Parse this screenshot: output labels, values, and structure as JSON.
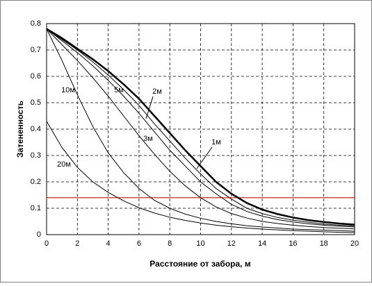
{
  "chart_data": {
    "type": "line",
    "x_label": "Расстояние от забора, м",
    "y_label": "Затененность",
    "x": [
      0,
      1,
      2,
      3,
      4,
      5,
      6,
      7,
      8,
      9,
      10,
      11,
      12,
      13,
      14,
      15,
      16,
      17,
      18,
      19,
      20
    ],
    "xlim": [
      0,
      20
    ],
    "xticks": [
      0,
      2,
      4,
      6,
      8,
      10,
      12,
      14,
      16,
      18,
      20
    ],
    "ylim": [
      0,
      0.8
    ],
    "yticks": [
      0,
      0.1,
      0.2,
      0.3,
      0.4,
      0.5,
      0.6,
      0.7,
      0.8
    ],
    "grid": true,
    "series": [
      {
        "name": "1м",
        "color": "#000000",
        "line_width": 2.5,
        "values": [
          0.78,
          0.745,
          0.705,
          0.665,
          0.62,
          0.57,
          0.515,
          0.45,
          0.385,
          0.32,
          0.26,
          0.2,
          0.155,
          0.12,
          0.095,
          0.078,
          0.065,
          0.055,
          0.048,
          0.042,
          0.038
        ]
      },
      {
        "name": "2м",
        "color": "#000000",
        "line_width": 1,
        "values": [
          0.78,
          0.74,
          0.7,
          0.655,
          0.605,
          0.55,
          0.49,
          0.42,
          0.355,
          0.29,
          0.23,
          0.175,
          0.135,
          0.1,
          0.08,
          0.065,
          0.055,
          0.047,
          0.04,
          0.036,
          0.033
        ]
      },
      {
        "name": "3м",
        "color": "#000000",
        "line_width": 1,
        "values": [
          0.78,
          0.735,
          0.69,
          0.64,
          0.585,
          0.525,
          0.46,
          0.39,
          0.32,
          0.26,
          0.2,
          0.155,
          0.115,
          0.088,
          0.07,
          0.057,
          0.048,
          0.041,
          0.036,
          0.032,
          0.029
        ]
      },
      {
        "name": "5м",
        "color": "#000000",
        "line_width": 1,
        "values": [
          0.78,
          0.72,
          0.66,
          0.595,
          0.525,
          0.45,
          0.375,
          0.305,
          0.24,
          0.185,
          0.14,
          0.105,
          0.08,
          0.063,
          0.05,
          0.042,
          0.036,
          0.031,
          0.027,
          0.024,
          0.022
        ]
      },
      {
        "name": "10м",
        "color": "#000000",
        "line_width": 1,
        "values": [
          0.78,
          0.66,
          0.53,
          0.41,
          0.31,
          0.235,
          0.175,
          0.13,
          0.1,
          0.078,
          0.062,
          0.05,
          0.041,
          0.034,
          0.029,
          0.025,
          0.021,
          0.019,
          0.017,
          0.015,
          0.013
        ]
      },
      {
        "name": "20м",
        "color": "#000000",
        "line_width": 1,
        "values": [
          0.43,
          0.33,
          0.255,
          0.2,
          0.16,
          0.128,
          0.102,
          0.082,
          0.066,
          0.054,
          0.044,
          0.036,
          0.03,
          0.025,
          0.021,
          0.018,
          0.015,
          0.013,
          0.011,
          0.009,
          0.008
        ]
      }
    ],
    "reference_line": {
      "value": 0.14,
      "color": "#c00000"
    }
  }
}
